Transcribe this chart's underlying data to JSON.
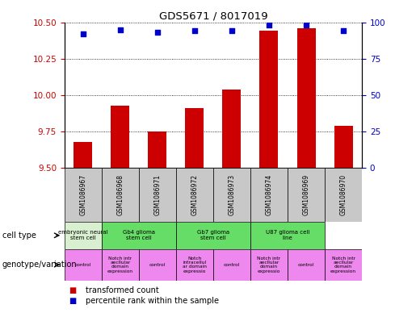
{
  "title": "GDS5671 / 8017019",
  "samples": [
    "GSM1086967",
    "GSM1086968",
    "GSM1086971",
    "GSM1086972",
    "GSM1086973",
    "GSM1086974",
    "GSM1086969",
    "GSM1086970"
  ],
  "transformed_count": [
    9.68,
    9.93,
    9.75,
    9.91,
    10.04,
    10.44,
    10.46,
    9.79
  ],
  "percentile_rank": [
    92,
    95,
    93,
    94,
    94,
    98,
    98,
    94
  ],
  "ylim_left": [
    9.5,
    10.5
  ],
  "ylim_right": [
    0,
    100
  ],
  "yticks_left": [
    9.5,
    9.75,
    10.0,
    10.25,
    10.5
  ],
  "yticks_right": [
    0,
    25,
    50,
    75,
    100
  ],
  "bar_color": "#cc0000",
  "dot_color": "#0000cc",
  "tick_color_left": "#cc0000",
  "tick_color_right": "#0000cc",
  "sample_bg_color": "#c8c8c8",
  "cell_type_label": "cell type",
  "genotype_label": "genotype/variation",
  "legend_bar": "transformed count",
  "legend_dot": "percentile rank within the sample",
  "ct_groups": [
    [
      0,
      1,
      "embryonic neural\nstem cell",
      "#d8f0d0"
    ],
    [
      1,
      3,
      "Gb4 glioma\nstem cell",
      "#66dd66"
    ],
    [
      3,
      5,
      "Gb7 glioma\nstem cell",
      "#66dd66"
    ],
    [
      5,
      7,
      "U87 glioma cell\nline",
      "#66dd66"
    ]
  ],
  "geno_groups": [
    [
      0,
      1,
      "control",
      "#ee88ee"
    ],
    [
      1,
      2,
      "Notch intr\naecllular\ndomain\nexpression",
      "#ee88ee"
    ],
    [
      2,
      3,
      "control",
      "#ee88ee"
    ],
    [
      3,
      4,
      "Notch\nintracellul\nar domain\nexpressio",
      "#ee88ee"
    ],
    [
      4,
      5,
      "control",
      "#ee88ee"
    ],
    [
      5,
      6,
      "Notch intr\naecllular\ndomain\nexpressio",
      "#ee88ee"
    ],
    [
      6,
      7,
      "control",
      "#ee88ee"
    ],
    [
      7,
      8,
      "Notch intr\naecllular\ndomain\nexpression",
      "#ee88ee"
    ]
  ]
}
